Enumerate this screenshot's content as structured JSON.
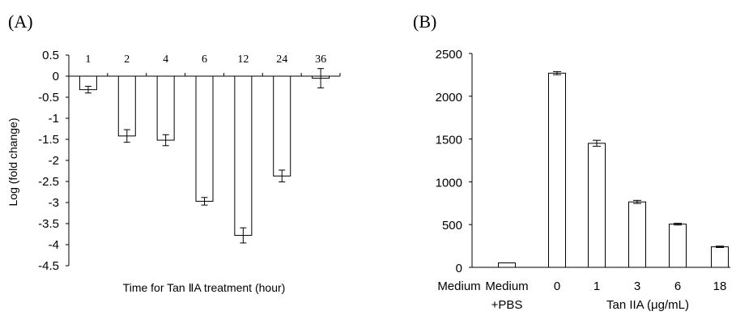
{
  "chart_data": [
    {
      "type": "bar",
      "panel_label": "(A)",
      "categories": [
        "1",
        "2",
        "4",
        "6",
        "12",
        "24",
        "36"
      ],
      "values": [
        -0.32,
        -1.42,
        -1.52,
        -2.97,
        -3.78,
        -2.37,
        -0.05
      ],
      "errors": [
        0.08,
        0.15,
        0.13,
        0.09,
        0.18,
        0.14,
        0.23
      ],
      "xlabel": "Time for Tan ⅡA treatment (hour)",
      "ylabel": "Log (fold change)",
      "ylim": [
        -4.5,
        0.5
      ],
      "yticks": [
        "0.5",
        "0",
        "-0.5",
        "-1",
        "-1.5",
        "-2",
        "-2.5",
        "-3",
        "-3.5",
        "-4",
        "-4.5"
      ],
      "category_labels_position": "top"
    },
    {
      "type": "bar",
      "panel_label": "(B)",
      "categories": [
        "Medium",
        "Medium\n+PBS",
        "0",
        "1",
        "3",
        "6",
        "18"
      ],
      "category_lines": [
        [
          "Medium"
        ],
        [
          "Medium",
          "+PBS"
        ],
        [
          "0"
        ],
        [
          "1"
        ],
        [
          "3"
        ],
        [
          "6"
        ],
        [
          "18"
        ]
      ],
      "values": [
        0,
        52,
        2270,
        1450,
        765,
        505,
        240
      ],
      "errors": [
        0,
        0,
        18,
        35,
        18,
        10,
        8
      ],
      "xlabel": "Tan IIA  (μg/mL)",
      "ylim": [
        0,
        2500
      ],
      "yticks": [
        "2500",
        "2000",
        "1500",
        "1000",
        "500",
        "0"
      ]
    }
  ]
}
